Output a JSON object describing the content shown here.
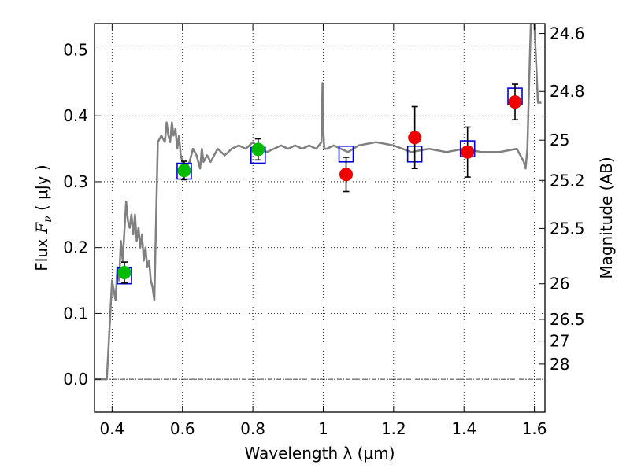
{
  "chart_data": {
    "type": "scatter",
    "xlabel": "Wavelength  λ (μm)",
    "ylabel": "Flux  Fν  ( μJy )",
    "ylabel_parts": {
      "prefix": "Flux  ",
      "var": "F",
      "sub": "ν",
      "suffix": "  ( μJy )"
    },
    "y2label": "Magnitude (AB)",
    "xlim": [
      0.35,
      1.63
    ],
    "ylim": [
      -0.05,
      0.54
    ],
    "x_ticks": [
      0.4,
      0.6,
      0.8,
      1.0,
      1.2,
      1.4,
      1.6
    ],
    "x_tick_labels": [
      "0.4",
      "0.6",
      "0.8",
      "1",
      "1.2",
      "1.4",
      "1.6"
    ],
    "y_ticks": [
      0.0,
      0.1,
      0.2,
      0.3,
      0.4,
      0.5
    ],
    "y_tick_labels": [
      "0.0",
      "0.1",
      "0.2",
      "0.3",
      "0.4",
      "0.5"
    ],
    "mag_ticks": [
      {
        "label": "24.6",
        "flux": 0.525
      },
      {
        "label": "24.8",
        "flux": 0.437
      },
      {
        "label": "25",
        "flux": 0.363
      },
      {
        "label": "25.2",
        "flux": 0.302
      },
      {
        "label": "25.5",
        "flux": 0.229
      },
      {
        "label": "26",
        "flux": 0.145
      },
      {
        "label": "26.5",
        "flux": 0.091
      },
      {
        "label": "27",
        "flux": 0.058
      },
      {
        "label": "28",
        "flux": 0.023
      }
    ],
    "grid": true,
    "zero_line": true,
    "colors": {
      "model": "#808080",
      "green": "#00bb00",
      "red": "#ee0000",
      "box": "#0000dd"
    },
    "series": [
      {
        "type": "line",
        "x": [
          0.35,
          0.385,
          0.39,
          0.4,
          0.41,
          0.415,
          0.42,
          0.425,
          0.43,
          0.44,
          0.445,
          0.45,
          0.455,
          0.46,
          0.465,
          0.47,
          0.475,
          0.48,
          0.485,
          0.49,
          0.495,
          0.5,
          0.505,
          0.51,
          0.515,
          0.52,
          0.525,
          0.53,
          0.54,
          0.55,
          0.555,
          0.56,
          0.565,
          0.57,
          0.575,
          0.58,
          0.585,
          0.59,
          0.595,
          0.6,
          0.61,
          0.62,
          0.63,
          0.64,
          0.645,
          0.65,
          0.655,
          0.66,
          0.67,
          0.68,
          0.69,
          0.7,
          0.72,
          0.74,
          0.76,
          0.78,
          0.8,
          0.82,
          0.84,
          0.86,
          0.88,
          0.9,
          0.92,
          0.94,
          0.96,
          0.98,
          0.995,
          0.998,
          1.0,
          1.003,
          1.01,
          1.03,
          1.05,
          1.07,
          1.1,
          1.15,
          1.2,
          1.25,
          1.3,
          1.35,
          1.4,
          1.45,
          1.5,
          1.55,
          1.57,
          1.575,
          1.58,
          1.585,
          1.59,
          1.6,
          1.61,
          1.62
        ],
        "y": [
          0.0,
          0.0,
          0.05,
          0.15,
          0.12,
          0.17,
          0.15,
          0.21,
          0.18,
          0.27,
          0.24,
          0.23,
          0.25,
          0.22,
          0.25,
          0.21,
          0.23,
          0.2,
          0.22,
          0.18,
          0.2,
          0.17,
          0.18,
          0.15,
          0.14,
          0.12,
          0.24,
          0.36,
          0.37,
          0.36,
          0.39,
          0.37,
          0.36,
          0.39,
          0.37,
          0.38,
          0.35,
          0.37,
          0.34,
          0.33,
          0.32,
          0.33,
          0.35,
          0.34,
          0.33,
          0.32,
          0.35,
          0.33,
          0.34,
          0.33,
          0.34,
          0.35,
          0.34,
          0.35,
          0.355,
          0.35,
          0.36,
          0.35,
          0.345,
          0.35,
          0.355,
          0.35,
          0.355,
          0.35,
          0.355,
          0.35,
          0.36,
          0.45,
          0.38,
          0.35,
          0.35,
          0.355,
          0.35,
          0.345,
          0.355,
          0.36,
          0.355,
          0.345,
          0.35,
          0.345,
          0.35,
          0.345,
          0.345,
          0.35,
          0.33,
          0.32,
          0.35,
          0.45,
          0.54,
          0.54,
          0.42,
          0.42
        ]
      },
      {
        "type": "box",
        "x": [
          0.435,
          0.605,
          0.815,
          1.065,
          1.26,
          1.41,
          1.545
        ],
        "y": [
          0.157,
          0.316,
          0.34,
          0.342,
          0.342,
          0.35,
          0.43
        ]
      },
      {
        "type": "errorbar",
        "color": "green",
        "x": [
          0.435,
          0.605,
          0.815
        ],
        "y": [
          0.162,
          0.317,
          0.349
        ],
        "yerr": [
          0.016,
          0.014,
          0.016
        ]
      },
      {
        "type": "errorbar",
        "color": "red",
        "x": [
          1.065,
          1.26,
          1.41,
          1.545
        ],
        "y": [
          0.311,
          0.367,
          0.345,
          0.421
        ],
        "yerr": [
          0.026,
          0.047,
          0.038,
          0.027
        ]
      }
    ]
  }
}
